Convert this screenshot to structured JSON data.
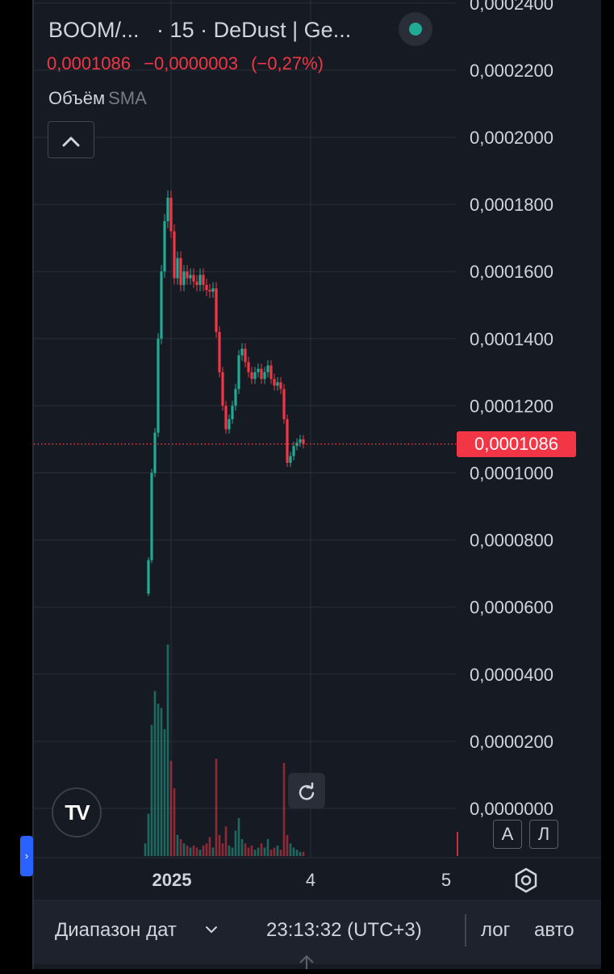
{
  "header": {
    "symbol": "BOOM/...",
    "interval": "15",
    "exchange": "DeDust | Ge...",
    "separator": "·",
    "last_price": "0,0001086",
    "change": "−0,0000003",
    "change_pct": "(−0,27%)",
    "volume_label": "Объём",
    "volume_ma": "SMA",
    "status_color": "#22ab94"
  },
  "controls": {
    "collapse_icon": "chevron-up-icon",
    "reset_icon": "reset-icon",
    "logo_text": "TV",
    "scale_auto_btn": "А",
    "scale_log_btn": "Л",
    "settings_icon": "gear-icon"
  },
  "bottom_bar": {
    "date_range": "Диапазон дат",
    "clock": "23:13:32 (UTC+3)",
    "log": "лог",
    "auto": "авто"
  },
  "colors": {
    "up": "#22ab94",
    "down": "#f23645",
    "background": "#161a23",
    "grid": "#2a2e39"
  },
  "chart_data": {
    "type": "candlestick",
    "ylim": [
      0,
      0.00024
    ],
    "y_ticks": [
      "0,0000000",
      "0,0000200",
      "0,0000400",
      "0,0000600",
      "0,0000800",
      "0,0001000",
      "0,0001200",
      "0,0001400",
      "0,0001600",
      "0,0001800",
      "0,0002000",
      "0,0002200",
      "0,0002400"
    ],
    "x_ticks": [
      "2025",
      "4",
      "5"
    ],
    "last_price": 0.0001086,
    "last_price_label": "0,0001086",
    "price_path": [
      [
        0,
        6.4e-05
      ],
      [
        1,
        7.4e-05
      ],
      [
        2,
        0.0001
      ],
      [
        3,
        0.000112
      ],
      [
        4,
        0.00014
      ],
      [
        5,
        0.00016
      ],
      [
        6,
        0.000175
      ],
      [
        7,
        0.000182
      ],
      [
        8,
        0.000172
      ],
      [
        9,
        0.000158
      ],
      [
        10,
        0.000164
      ],
      [
        11,
        0.000156
      ],
      [
        12,
        0.00016
      ],
      [
        13,
        0.000158
      ],
      [
        14,
        0.000159
      ],
      [
        15,
        0.000157
      ],
      [
        16,
        0.000156
      ],
      [
        17,
        0.000159
      ],
      [
        18,
        0.000156
      ],
      [
        19,
        0.0001545
      ],
      [
        20,
        0.000154
      ],
      [
        21,
        0.000155
      ],
      [
        22,
        0.000142
      ],
      [
        23,
        0.00013
      ],
      [
        24,
        0.00012
      ],
      [
        25,
        0.000113
      ],
      [
        26,
        0.000116
      ],
      [
        27,
        0.00012
      ],
      [
        28,
        0.000125
      ],
      [
        29,
        0.000135
      ],
      [
        30,
        0.000137
      ],
      [
        31,
        0.000133
      ],
      [
        32,
        0.00013
      ],
      [
        33,
        0.000128
      ],
      [
        34,
        0.00013
      ],
      [
        35,
        0.000131
      ],
      [
        36,
        0.000128
      ],
      [
        37,
        0.00013
      ],
      [
        38,
        0.000132
      ],
      [
        39,
        0.000128
      ],
      [
        40,
        0.000126
      ],
      [
        41,
        0.000127
      ],
      [
        42,
        0.000125
      ],
      [
        43,
        0.000116
      ],
      [
        44,
        0.000103
      ],
      [
        45,
        0.000105
      ],
      [
        46,
        0.000108
      ],
      [
        47,
        0.000109
      ],
      [
        48,
        0.00011
      ],
      [
        49,
        0.0001086
      ]
    ],
    "volumes": [
      0.06,
      0.2,
      0.62,
      0.78,
      0.72,
      0.7,
      0.6,
      1.0,
      0.45,
      0.32,
      0.1,
      0.08,
      0.06,
      0.05,
      0.04,
      0.05,
      0.04,
      0.03,
      0.05,
      0.06,
      0.09,
      0.04,
      0.46,
      0.1,
      0.06,
      0.14,
      0.05,
      0.04,
      0.12,
      0.18,
      0.08,
      0.06,
      0.04,
      0.05,
      0.03,
      0.04,
      0.06,
      0.04,
      0.08,
      0.03,
      0.04,
      0.05,
      0.03,
      0.44,
      0.1,
      0.06,
      0.04,
      0.03,
      0.02,
      0.02
    ]
  }
}
